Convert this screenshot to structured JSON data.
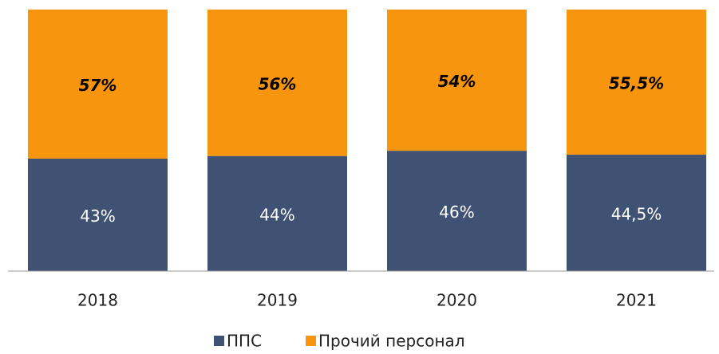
{
  "chart_data": {
    "type": "stacked_bar",
    "categories": [
      "2018",
      "2019",
      "2020",
      "2021"
    ],
    "series": [
      {
        "name": "ППС",
        "color": "#3f5273",
        "values": [
          43,
          44,
          46,
          44.5
        ],
        "value_labels": [
          "43%",
          "44%",
          "46%",
          "44,5%"
        ]
      },
      {
        "name": "Прочий персонал",
        "color": "#f7950f",
        "values": [
          57,
          56,
          54,
          55.5
        ],
        "value_labels": [
          "57%",
          "56%",
          "54%",
          "55,5%"
        ]
      }
    ],
    "ylim": [
      0,
      100
    ]
  }
}
